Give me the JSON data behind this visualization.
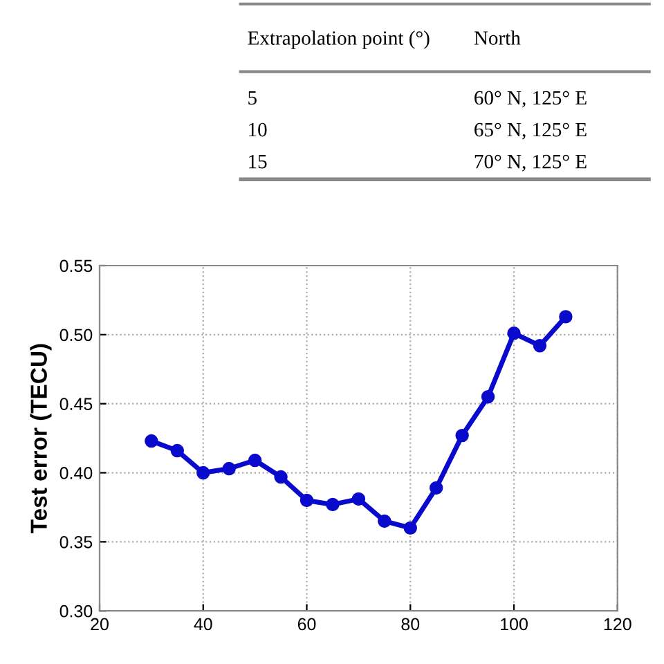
{
  "chart_data": [
    {
      "type": "other",
      "annotations": [
        "Extrapolation point (°)",
        "North",
        "5",
        "60° N, 125° E",
        "10",
        "65° N, 125° E",
        "15",
        "70° N, 125° E"
      ]
    },
    {
      "type": "line",
      "ylabel": "Test error (TECU)",
      "x": [
        30,
        35,
        40,
        45,
        50,
        55,
        60,
        65,
        70,
        75,
        80,
        85,
        90,
        95,
        100,
        105,
        110
      ],
      "series": [
        {
          "color": "#0a0acc",
          "values": [
            0.423,
            0.416,
            0.4,
            0.403,
            0.409,
            0.397,
            0.38,
            0.377,
            0.381,
            0.365,
            0.36,
            0.389,
            0.427,
            0.455,
            0.501,
            0.492,
            0.513
          ]
        }
      ],
      "xlim": [
        20,
        120
      ],
      "xticks": [
        20,
        40,
        60,
        80,
        100,
        {
          "value": 120,
          "label": "120"
        }
      ],
      "ylim": [
        0.3,
        0.55
      ],
      "yticks": [
        {
          "value": 0.3,
          "label": "0.30"
        },
        {
          "value": 0.35,
          "label": "0.35"
        },
        {
          "value": 0.4,
          "label": "0.40"
        },
        {
          "value": 0.45,
          "label": "0.45"
        },
        {
          "value": 0.5,
          "label": "0.50"
        },
        {
          "value": 0.55,
          "label": "0.55"
        }
      ],
      "grid": true,
      "marker": "circle",
      "line_style": "solid"
    }
  ]
}
